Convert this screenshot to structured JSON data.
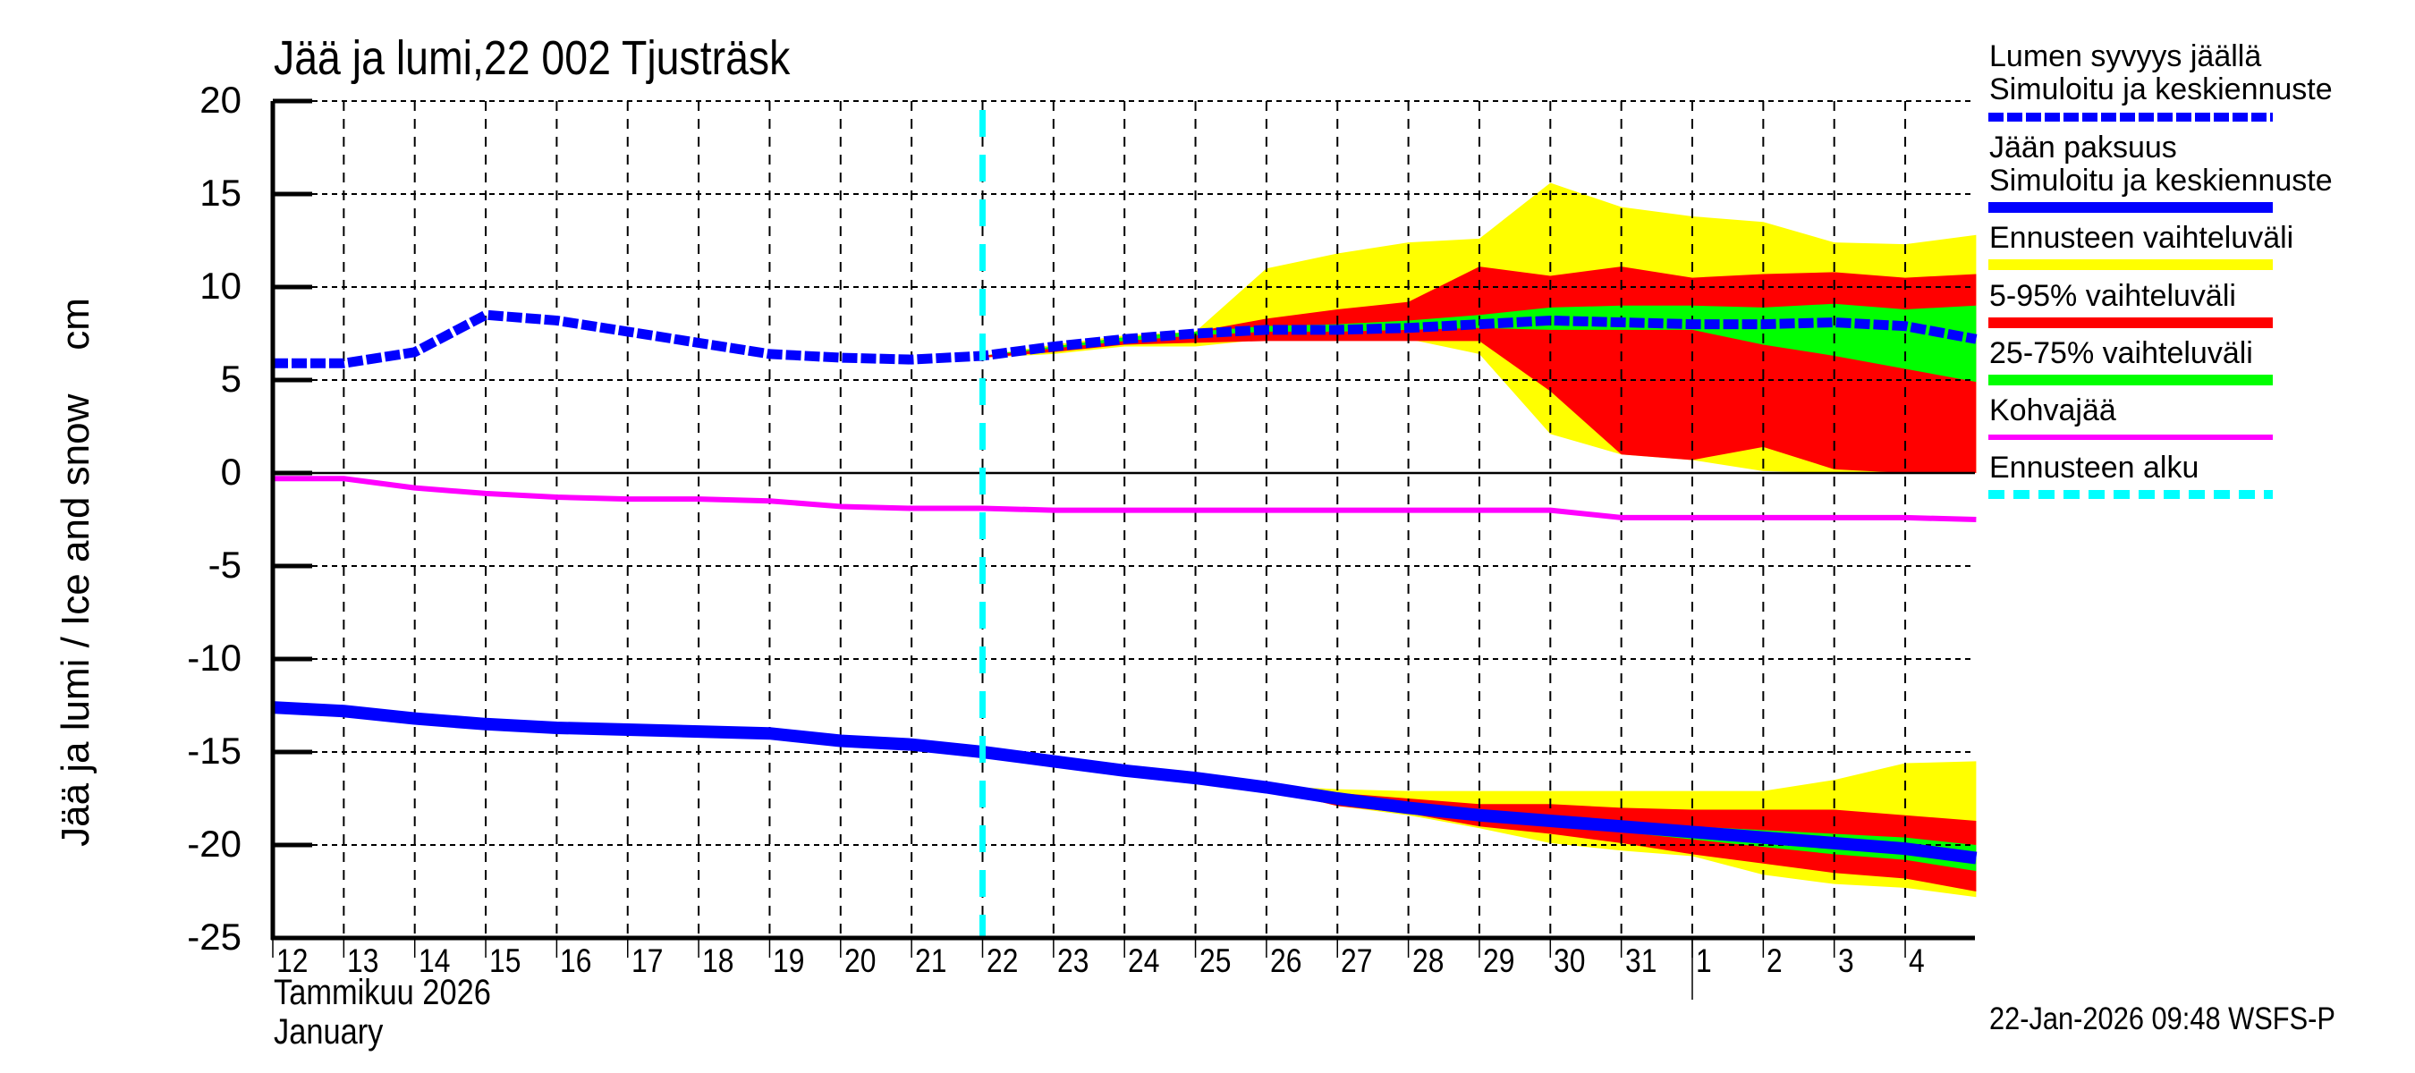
{
  "title": "Jää ja lumi,22 002 Tjusträsk",
  "y_axis_label": "Jää ja lumi / Ice and snow    cm",
  "x_axis": {
    "month_line1": "Tammikuu  2026",
    "month_line2": "January",
    "tick_labels": [
      "12",
      "13",
      "14",
      "15",
      "16",
      "17",
      "18",
      "19",
      "20",
      "21",
      "22",
      "23",
      "24",
      "25",
      "26",
      "27",
      "28",
      "29",
      "30",
      "31",
      "1",
      "2",
      "3",
      "4"
    ]
  },
  "y_ticks": [
    "20",
    "15",
    "10",
    "5",
    "0",
    "-5",
    "-10",
    "-15",
    "-20",
    "-25"
  ],
  "legend": {
    "snow_title": "Lumen syvyys jäällä",
    "snow_sub": "Simuloitu ja keskiennuste",
    "ice_title": "Jään paksuus",
    "ice_sub": "Simuloitu ja keskiennuste",
    "range": "Ennusteen vaihteluväli",
    "p5_95": "5-95% vaihteluväli",
    "p25_75": "25-75% vaihteluväli",
    "slush": "Kohvajää",
    "forecast_start": "Ennusteen alku"
  },
  "footer": "22-Jan-2026 09:48 WSFS-P",
  "colors": {
    "snow": "#0000ff",
    "ice": "#0000ff",
    "range": "#ffff00",
    "p5_95": "#ff0000",
    "p25_75": "#00ff00",
    "slush": "#ff00ff",
    "forecast_start": "#00ffff",
    "grid": "#000000"
  },
  "chart_data": {
    "type": "line",
    "title": "Jää ja lumi,22 002 Tjusträsk",
    "xlabel": "Tammikuu 2026 / January",
    "ylabel": "Jää ja lumi / Ice and snow cm",
    "ylim": [
      -25,
      20
    ],
    "grid": true,
    "legend_position": "right",
    "x_start_day_index": 0,
    "x_days": [
      "Jan 12",
      "Jan 13",
      "Jan 14",
      "Jan 15",
      "Jan 16",
      "Jan 17",
      "Jan 18",
      "Jan 19",
      "Jan 20",
      "Jan 21",
      "Jan 22",
      "Jan 23",
      "Jan 24",
      "Jan 25",
      "Jan 26",
      "Jan 27",
      "Jan 28",
      "Jan 29",
      "Jan 30",
      "Jan 31",
      "Feb 1",
      "Feb 2",
      "Feb 3",
      "Feb 4",
      "Feb 5"
    ],
    "forecast_start_index": 10,
    "series": [
      {
        "name": "Lumen syvyys jäällä (Simuloitu ja keskiennuste)",
        "style": "dashed",
        "color": "#0000ff",
        "values": [
          5.9,
          5.9,
          6.5,
          8.5,
          8.2,
          7.6,
          7.0,
          6.4,
          6.2,
          6.1,
          6.3,
          6.8,
          7.2,
          7.5,
          7.7,
          7.7,
          7.8,
          8.0,
          8.2,
          8.1,
          8.0,
          8.0,
          8.1,
          7.9,
          7.2
        ]
      },
      {
        "name": "Jään paksuus (Simuloitu ja keskiennuste)",
        "style": "solid-thick",
        "color": "#0000ff",
        "values": [
          -12.6,
          -12.8,
          -13.2,
          -13.5,
          -13.7,
          -13.8,
          -13.9,
          -14.0,
          -14.4,
          -14.6,
          -15.0,
          -15.5,
          -16.0,
          -16.4,
          -16.9,
          -17.5,
          -18.0,
          -18.4,
          -18.7,
          -19.0,
          -19.3,
          -19.6,
          -19.9,
          -20.2,
          -20.7
        ]
      },
      {
        "name": "Kohvajää",
        "style": "solid",
        "color": "#ff00ff",
        "values": [
          -0.3,
          -0.3,
          -0.8,
          -1.1,
          -1.3,
          -1.4,
          -1.4,
          -1.5,
          -1.8,
          -1.9,
          -1.9,
          -2.0,
          -2.0,
          -2.0,
          -2.0,
          -2.0,
          -2.0,
          -2.0,
          -2.0,
          -2.4,
          -2.4,
          -2.4,
          -2.4,
          -2.4,
          -2.5
        ]
      }
    ],
    "bands": {
      "start_index": 10,
      "snow": {
        "range_upper": [
          6.3,
          6.9,
          7.4,
          7.6,
          11.0,
          11.8,
          12.4,
          12.6,
          15.6,
          14.3,
          13.8,
          13.5,
          12.4,
          12.3,
          12.8
        ],
        "p95": [
          6.3,
          6.8,
          7.3,
          7.6,
          8.3,
          8.8,
          9.2,
          11.1,
          10.6,
          11.1,
          10.5,
          10.7,
          10.8,
          10.5,
          10.7
        ],
        "p75": [
          6.3,
          6.8,
          7.3,
          7.6,
          7.9,
          8.0,
          8.2,
          8.5,
          8.9,
          9.0,
          9.0,
          8.9,
          9.1,
          8.8,
          9.0
        ],
        "p25": [
          6.3,
          6.7,
          7.1,
          7.4,
          7.6,
          7.6,
          7.7,
          7.8,
          7.7,
          7.7,
          7.7,
          6.9,
          6.3,
          5.6,
          4.9
        ],
        "p5": [
          6.2,
          6.5,
          6.9,
          7.0,
          7.1,
          7.1,
          7.1,
          7.1,
          4.4,
          1.0,
          0.7,
          1.4,
          0.2,
          0.0,
          0.0
        ],
        "range_lower": [
          6.2,
          6.4,
          6.8,
          6.8,
          7.2,
          7.2,
          7.2,
          6.4,
          2.1,
          1.0,
          0.7,
          0.1,
          0.0,
          0.0,
          0.0
        ]
      },
      "ice": {
        "range_upper": [
          -15.0,
          -15.5,
          -16.0,
          -16.3,
          -16.8,
          -17.0,
          -17.1,
          -17.1,
          -17.1,
          -17.1,
          -17.1,
          -17.1,
          -16.5,
          -15.6,
          -15.5
        ],
        "p95": [
          -15.0,
          -15.5,
          -16.0,
          -16.3,
          -16.8,
          -17.2,
          -17.5,
          -17.8,
          -17.8,
          -18.0,
          -18.1,
          -18.1,
          -18.1,
          -18.4,
          -18.7
        ],
        "p75": [
          -15.0,
          -15.5,
          -16.0,
          -16.4,
          -16.9,
          -17.4,
          -17.9,
          -18.3,
          -18.5,
          -18.8,
          -19.0,
          -19.2,
          -19.4,
          -19.6,
          -20.0
        ],
        "p25": [
          -15.0,
          -15.5,
          -16.0,
          -16.4,
          -16.9,
          -17.6,
          -18.1,
          -18.5,
          -18.9,
          -19.3,
          -19.7,
          -20.1,
          -20.5,
          -20.8,
          -21.4
        ],
        "p5": [
          -15.0,
          -15.5,
          -16.0,
          -16.5,
          -17.0,
          -17.9,
          -18.3,
          -19.0,
          -19.4,
          -19.9,
          -20.5,
          -21.0,
          -21.5,
          -21.8,
          -22.5
        ],
        "range_lower": [
          -15.0,
          -15.5,
          -16.0,
          -16.5,
          -17.0,
          -17.9,
          -18.4,
          -19.1,
          -19.9,
          -20.3,
          -20.6,
          -21.6,
          -22.1,
          -22.3,
          -22.8
        ]
      }
    }
  }
}
